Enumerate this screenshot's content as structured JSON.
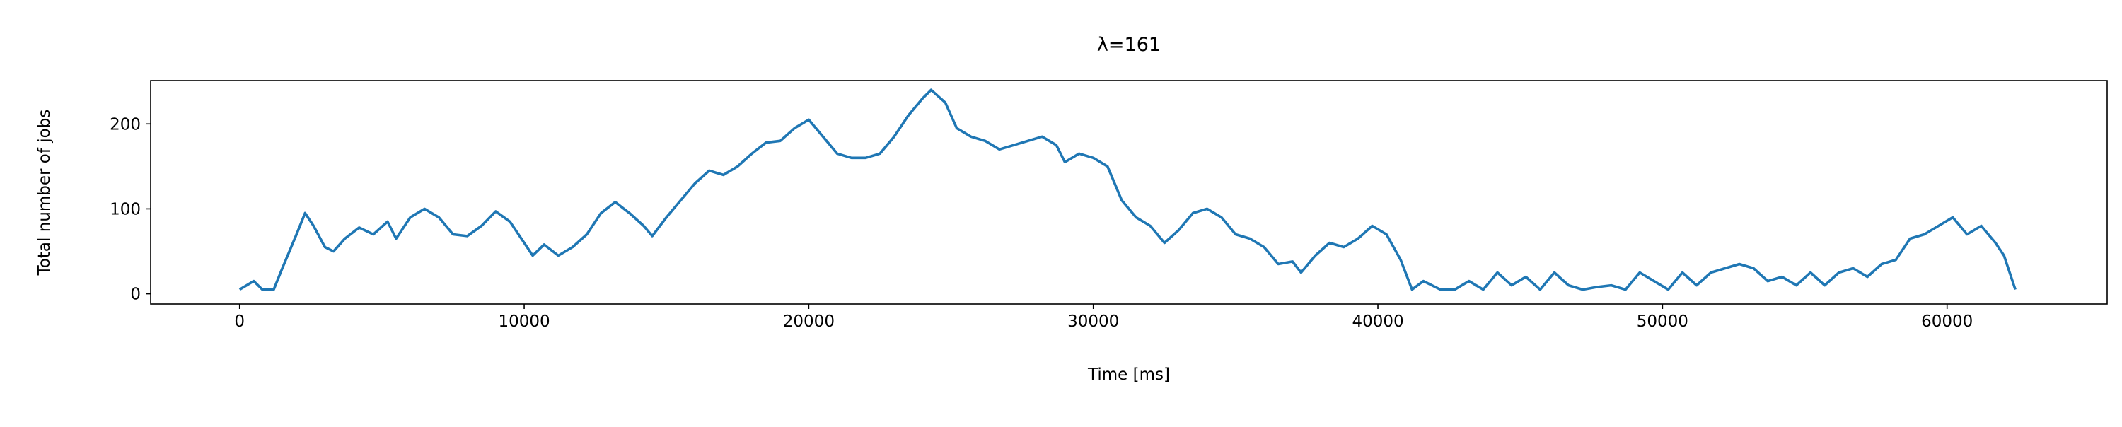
{
  "chart_data": {
    "type": "line",
    "title": "λ=161",
    "xlabel": "Time [ms]",
    "ylabel": "Total number of jobs",
    "color": "#1f77b4",
    "x": [
      0,
      500,
      800,
      1200,
      1500,
      2000,
      2300,
      2600,
      3000,
      3300,
      3700,
      4200,
      4700,
      5200,
      5500,
      6000,
      6500,
      7000,
      7500,
      8000,
      8500,
      9000,
      9500,
      10000,
      10300,
      10700,
      11200,
      11700,
      12200,
      12700,
      13200,
      13700,
      14200,
      14500,
      15000,
      15500,
      16000,
      16500,
      17000,
      17500,
      18000,
      18500,
      19000,
      19500,
      20000,
      20500,
      21000,
      21500,
      22000,
      22500,
      23000,
      23500,
      24000,
      24300,
      24800,
      25200,
      25700,
      26200,
      26700,
      27200,
      27700,
      28200,
      28700,
      29000,
      29500,
      30000,
      30500,
      31000,
      31500,
      32000,
      32500,
      33000,
      33500,
      34000,
      34500,
      35000,
      35500,
      36000,
      36500,
      37000,
      37300,
      37800,
      38300,
      38800,
      39300,
      39800,
      40300,
      40800,
      41200,
      41600,
      42200,
      42700,
      43200,
      43700,
      44200,
      44700,
      45200,
      45700,
      46200,
      46700,
      47200,
      47700,
      48200,
      48700,
      49200,
      49700,
      50200,
      50700,
      51200,
      51700,
      52200,
      52700,
      53200,
      53700,
      54200,
      54700,
      55200,
      55700,
      56200,
      56700,
      57200,
      57700,
      58200,
      58700,
      59200,
      59700,
      60200,
      60700,
      61200,
      61700,
      62000,
      62400
    ],
    "values": [
      5,
      15,
      5,
      5,
      30,
      70,
      95,
      80,
      55,
      50,
      65,
      78,
      70,
      85,
      65,
      90,
      100,
      90,
      70,
      68,
      80,
      97,
      85,
      60,
      45,
      58,
      45,
      55,
      70,
      95,
      108,
      95,
      80,
      68,
      90,
      110,
      130,
      145,
      140,
      150,
      165,
      178,
      180,
      195,
      205,
      185,
      165,
      160,
      160,
      165,
      185,
      210,
      230,
      240,
      225,
      195,
      185,
      180,
      170,
      175,
      180,
      185,
      175,
      155,
      165,
      160,
      150,
      110,
      90,
      80,
      60,
      75,
      95,
      100,
      90,
      70,
      65,
      55,
      35,
      38,
      25,
      45,
      60,
      55,
      65,
      80,
      70,
      40,
      5,
      15,
      5,
      5,
      15,
      5,
      25,
      10,
      20,
      5,
      25,
      10,
      5,
      8,
      10,
      5,
      25,
      15,
      5,
      25,
      10,
      25,
      30,
      35,
      30,
      15,
      20,
      10,
      25,
      10,
      25,
      30,
      20,
      35,
      40,
      65,
      70,
      80,
      90,
      70,
      80,
      60,
      45,
      5
    ],
    "xlim": [
      -3125,
      65625
    ],
    "ylim": [
      -12,
      251
    ],
    "xticks": [
      0,
      10000,
      20000,
      30000,
      40000,
      50000,
      60000
    ],
    "yticks": [
      0,
      100,
      200
    ]
  }
}
